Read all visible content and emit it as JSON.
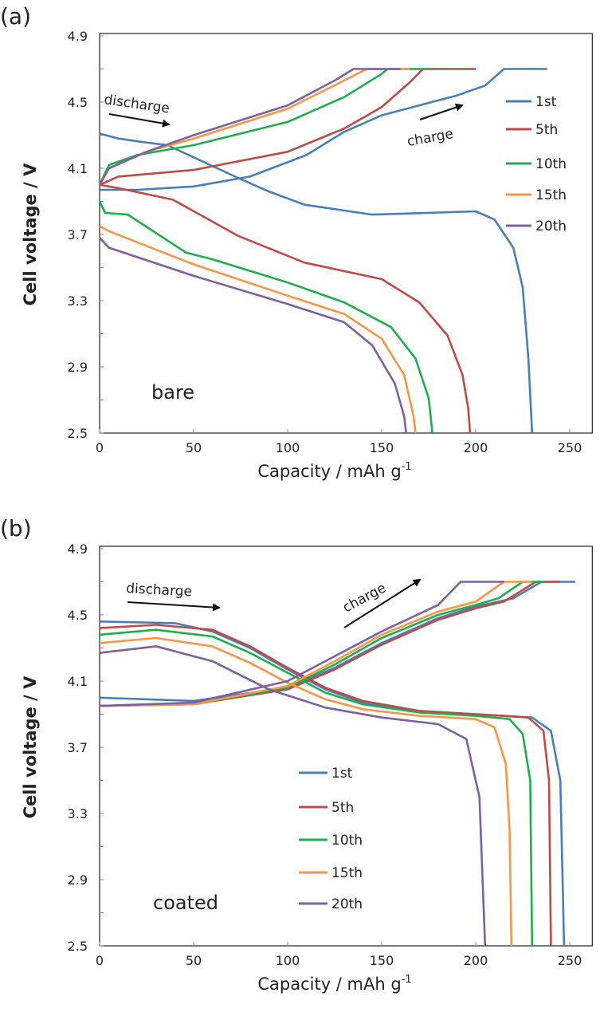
{
  "chart_data": [
    {
      "type": "line",
      "panel_label": "(a)",
      "annotation": "bare",
      "discharge_label": "discharge",
      "charge_label": "charge",
      "xlabel": "Capacity  / mAh g",
      "xlabel_sup": "-1",
      "ylabel": "Cell voltage / V",
      "xlim": [
        0,
        262
      ],
      "ylim": [
        2.5,
        4.9
      ],
      "xticks": [
        "0",
        "50",
        "100",
        "150",
        "200",
        "250"
      ],
      "yticks": [
        "4.9",
        "4.5",
        "4.1",
        "3.7",
        "3.3",
        "2.9",
        "2.5"
      ],
      "legend_position": "right",
      "grid": false,
      "series": [
        {
          "name": "1st",
          "color": "#4a7ebb",
          "discharge": [
            [
              0,
              4.31
            ],
            [
              10,
              4.28
            ],
            [
              22,
              4.26
            ],
            [
              36,
              4.24
            ],
            [
              55,
              4.14
            ],
            [
              74,
              4.04
            ],
            [
              90,
              3.96
            ],
            [
              109,
              3.88
            ],
            [
              145,
              3.82
            ],
            [
              200,
              3.84
            ],
            [
              210,
              3.79
            ],
            [
              220,
              3.62
            ],
            [
              225,
              3.38
            ],
            [
              228,
              2.95
            ],
            [
              230,
              2.5
            ]
          ],
          "charge": [
            [
              0,
              3.97
            ],
            [
              20,
              3.97
            ],
            [
              50,
              3.99
            ],
            [
              80,
              4.05
            ],
            [
              110,
              4.18
            ],
            [
              130,
              4.32
            ],
            [
              150,
              4.42
            ],
            [
              170,
              4.48
            ],
            [
              190,
              4.54
            ],
            [
              205,
              4.6
            ],
            [
              215,
              4.7
            ],
            [
              238,
              4.7
            ]
          ]
        },
        {
          "name": "5th",
          "color": "#be4b48",
          "discharge": [
            [
              0,
              4.0
            ],
            [
              10,
              3.98
            ],
            [
              39,
              3.91
            ],
            [
              74,
              3.69
            ],
            [
              109,
              3.53
            ],
            [
              150,
              3.43
            ],
            [
              170,
              3.29
            ],
            [
              185,
              3.09
            ],
            [
              193,
              2.85
            ],
            [
              196,
              2.65
            ],
            [
              197,
              2.5
            ]
          ],
          "charge": [
            [
              0,
              4.0
            ],
            [
              10,
              4.05
            ],
            [
              50,
              4.09
            ],
            [
              100,
              4.2
            ],
            [
              130,
              4.34
            ],
            [
              150,
              4.47
            ],
            [
              165,
              4.62
            ],
            [
              172,
              4.7
            ],
            [
              200,
              4.7
            ]
          ]
        },
        {
          "name": "10th",
          "color": "#1fae4c",
          "discharge": [
            [
              0,
              3.9
            ],
            [
              3,
              3.83
            ],
            [
              15,
              3.82
            ],
            [
              46,
              3.59
            ],
            [
              60,
              3.55
            ],
            [
              100,
              3.41
            ],
            [
              130,
              3.29
            ],
            [
              155,
              3.14
            ],
            [
              168,
              2.95
            ],
            [
              175,
              2.71
            ],
            [
              177,
              2.5
            ]
          ],
          "charge": [
            [
              0,
              4.0
            ],
            [
              5,
              4.12
            ],
            [
              20,
              4.18
            ],
            [
              50,
              4.24
            ],
            [
              100,
              4.38
            ],
            [
              130,
              4.53
            ],
            [
              150,
              4.67
            ],
            [
              153,
              4.7
            ],
            [
              175,
              4.7
            ]
          ]
        },
        {
          "name": "15th",
          "color": "#f79646",
          "discharge": [
            [
              0,
              3.75
            ],
            [
              5,
              3.72
            ],
            [
              50,
              3.52
            ],
            [
              100,
              3.33
            ],
            [
              130,
              3.22
            ],
            [
              150,
              3.07
            ],
            [
              162,
              2.85
            ],
            [
              167,
              2.6
            ],
            [
              168,
              2.5
            ]
          ],
          "charge": [
            [
              0,
              4.0
            ],
            [
              5,
              4.1
            ],
            [
              25,
              4.2
            ],
            [
              50,
              4.28
            ],
            [
              100,
              4.46
            ],
            [
              130,
              4.63
            ],
            [
              142,
              4.7
            ],
            [
              165,
              4.7
            ]
          ]
        },
        {
          "name": "20th",
          "color": "#7d60a0",
          "discharge": [
            [
              0,
              3.68
            ],
            [
              5,
              3.62
            ],
            [
              50,
              3.45
            ],
            [
              100,
              3.28
            ],
            [
              130,
              3.17
            ],
            [
              145,
              3.03
            ],
            [
              157,
              2.8
            ],
            [
              162,
              2.6
            ],
            [
              163,
              2.5
            ]
          ],
          "charge": [
            [
              0,
              4.0
            ],
            [
              5,
              4.1
            ],
            [
              25,
              4.2
            ],
            [
              50,
              4.3
            ],
            [
              100,
              4.48
            ],
            [
              125,
              4.63
            ],
            [
              135,
              4.7
            ],
            [
              160,
              4.7
            ]
          ]
        }
      ]
    },
    {
      "type": "line",
      "panel_label": "(b)",
      "annotation": "coated",
      "discharge_label": "discharge",
      "charge_label": "charge",
      "xlabel": "Capacity  / mAh g",
      "xlabel_sup": "-1",
      "ylabel": "Cell voltage / V",
      "xlim": [
        0,
        262
      ],
      "ylim": [
        2.5,
        4.9
      ],
      "xticks": [
        "0",
        "50",
        "100",
        "150",
        "200",
        "250"
      ],
      "yticks": [
        "4.9",
        "4.5",
        "4.1",
        "3.7",
        "3.3",
        "2.9",
        "2.5"
      ],
      "legend_position": "bottom-center",
      "grid": false,
      "series": [
        {
          "name": "1st",
          "color": "#4a7ebb",
          "discharge": [
            [
              0,
              4.46
            ],
            [
              40,
              4.45
            ],
            [
              60,
              4.4
            ],
            [
              80,
              4.3
            ],
            [
              100,
              4.17
            ],
            [
              120,
              4.05
            ],
            [
              140,
              3.97
            ],
            [
              170,
              3.92
            ],
            [
              200,
              3.9
            ],
            [
              230,
              3.88
            ],
            [
              240,
              3.8
            ],
            [
              245,
              3.5
            ],
            [
              247,
              2.5
            ]
          ],
          "charge": [
            [
              0,
              4.0
            ],
            [
              50,
              3.98
            ],
            [
              100,
              4.06
            ],
            [
              125,
              4.18
            ],
            [
              150,
              4.33
            ],
            [
              180,
              4.48
            ],
            [
              200,
              4.55
            ],
            [
              220,
              4.6
            ],
            [
              235,
              4.7
            ],
            [
              253,
              4.7
            ]
          ]
        },
        {
          "name": "5th",
          "color": "#be4b48",
          "discharge": [
            [
              0,
              4.42
            ],
            [
              30,
              4.44
            ],
            [
              60,
              4.41
            ],
            [
              80,
              4.31
            ],
            [
              100,
              4.18
            ],
            [
              120,
              4.06
            ],
            [
              140,
              3.98
            ],
            [
              170,
              3.92
            ],
            [
              200,
              3.9
            ],
            [
              228,
              3.88
            ],
            [
              236,
              3.8
            ],
            [
              239,
              3.5
            ],
            [
              240,
              2.5
            ]
          ],
          "charge": [
            [
              0,
              3.95
            ],
            [
              50,
              3.96
            ],
            [
              100,
              4.05
            ],
            [
              125,
              4.17
            ],
            [
              150,
              4.32
            ],
            [
              180,
              4.47
            ],
            [
              200,
              4.54
            ],
            [
              215,
              4.58
            ],
            [
              232,
              4.7
            ],
            [
              245,
              4.7
            ]
          ]
        },
        {
          "name": "10th",
          "color": "#1fae4c",
          "discharge": [
            [
              0,
              4.38
            ],
            [
              30,
              4.41
            ],
            [
              60,
              4.37
            ],
            [
              80,
              4.27
            ],
            [
              100,
              4.15
            ],
            [
              120,
              4.03
            ],
            [
              140,
              3.96
            ],
            [
              170,
              3.91
            ],
            [
              200,
              3.89
            ],
            [
              218,
              3.87
            ],
            [
              225,
              3.78
            ],
            [
              229,
              3.5
            ],
            [
              230,
              2.5
            ]
          ],
          "charge": [
            [
              0,
              3.95
            ],
            [
              50,
              3.96
            ],
            [
              100,
              4.06
            ],
            [
              125,
              4.2
            ],
            [
              150,
              4.36
            ],
            [
              180,
              4.5
            ],
            [
              200,
              4.56
            ],
            [
              212,
              4.6
            ],
            [
              225,
              4.7
            ],
            [
              237,
              4.7
            ]
          ]
        },
        {
          "name": "15th",
          "color": "#f79646",
          "discharge": [
            [
              0,
              4.33
            ],
            [
              30,
              4.36
            ],
            [
              60,
              4.31
            ],
            [
              80,
              4.21
            ],
            [
              100,
              4.09
            ],
            [
              120,
              3.99
            ],
            [
              140,
              3.93
            ],
            [
              170,
              3.89
            ],
            [
              200,
              3.87
            ],
            [
              210,
              3.82
            ],
            [
              216,
              3.6
            ],
            [
              218,
              3.2
            ],
            [
              219,
              2.5
            ]
          ],
          "charge": [
            [
              0,
              3.95
            ],
            [
              50,
              3.96
            ],
            [
              100,
              4.07
            ],
            [
              125,
              4.22
            ],
            [
              150,
              4.38
            ],
            [
              180,
              4.52
            ],
            [
              200,
              4.58
            ],
            [
              215,
              4.7
            ],
            [
              230,
              4.7
            ]
          ]
        },
        {
          "name": "20th",
          "color": "#7d60a0",
          "discharge": [
            [
              0,
              4.27
            ],
            [
              30,
              4.31
            ],
            [
              60,
              4.22
            ],
            [
              90,
              4.05
            ],
            [
              120,
              3.94
            ],
            [
              150,
              3.88
            ],
            [
              180,
              3.84
            ],
            [
              195,
              3.75
            ],
            [
              202,
              3.4
            ],
            [
              205,
              2.5
            ]
          ],
          "charge": [
            [
              0,
              3.95
            ],
            [
              50,
              3.97
            ],
            [
              100,
              4.1
            ],
            [
              125,
              4.25
            ],
            [
              150,
              4.4
            ],
            [
              180,
              4.56
            ],
            [
              192,
              4.7
            ],
            [
              215,
              4.7
            ]
          ]
        }
      ]
    }
  ]
}
